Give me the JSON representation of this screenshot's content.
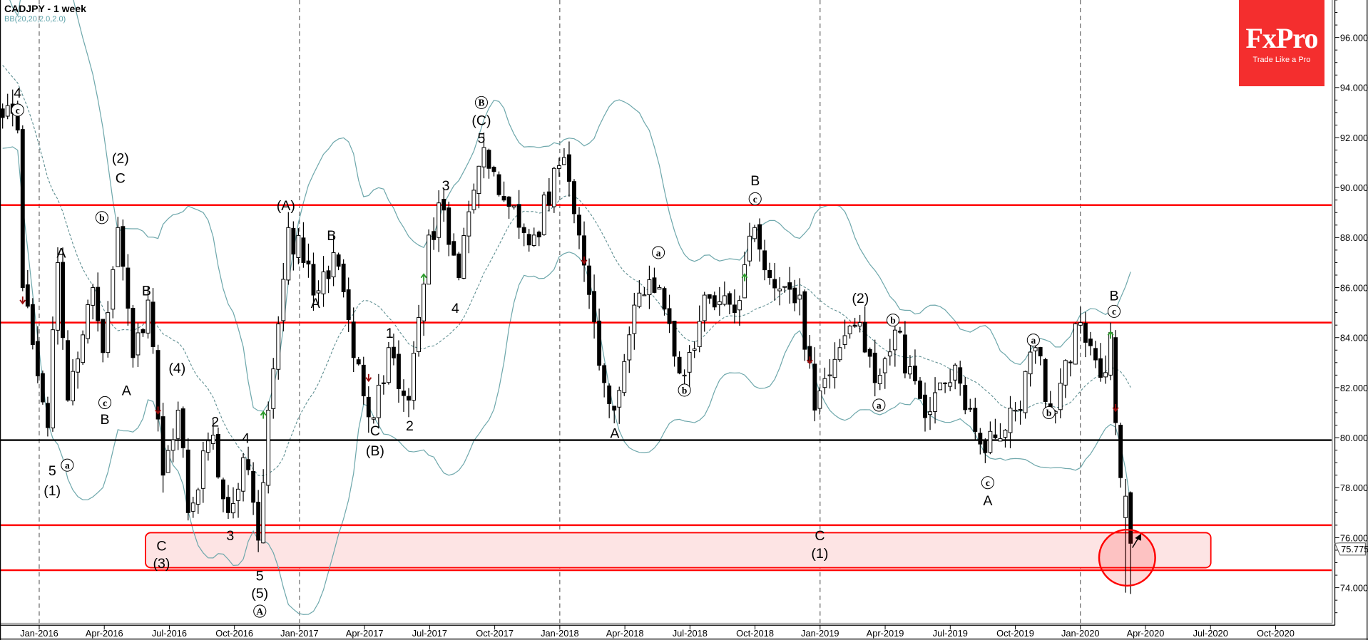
{
  "header": {
    "title": "CADJPY - 1 week",
    "indicator": "BB(20,20,2.0,2.0)"
  },
  "logo": {
    "brand": "FxPro",
    "tagline": "Trade Like a Pro"
  },
  "colors": {
    "bull": "#ffffff",
    "bear": "#000000",
    "band": "#6fa8ac",
    "level": "#ff0000",
    "support": "#000000",
    "zone_fill": "#fde4e4",
    "brand": "#f42e2e"
  },
  "chart_data": {
    "type": "candlestick",
    "symbol": "CADJPY",
    "timeframe": "1 week",
    "ylim": [
      72.57,
      97.5
    ],
    "y_ticks": [
      "74.000",
      "76.000",
      "78.000",
      "80.000",
      "82.000",
      "84.000",
      "86.000",
      "88.000",
      "90.000",
      "92.000",
      "94.000",
      "96.000"
    ],
    "x_ticks": [
      "Jan-2016",
      "Apr-2016",
      "Jul-2016",
      "Oct-2016",
      "Jan-2017",
      "Apr-2017",
      "Jul-2017",
      "Oct-2017",
      "Jan-2018",
      "Apr-2018",
      "Jul-2018",
      "Oct-2018",
      "Jan-2019",
      "Apr-2019",
      "Jul-2019",
      "Oct-2019",
      "Jan-2020",
      "Apr-2020",
      "Jul-2020",
      "Oct-2020"
    ],
    "first_tick_week": 7.3,
    "weeks_per_tick": 12.98,
    "year_separators": [
      "Jan-2016",
      "Jan-2017",
      "Jan-2018",
      "Jan-2019",
      "Jan-2020"
    ],
    "price_path": [
      [
        0,
        92.8
      ],
      [
        3,
        92.3
      ],
      [
        4,
        86.0
      ],
      [
        9,
        80.4
      ],
      [
        11,
        87.0
      ],
      [
        13,
        81.5
      ],
      [
        18,
        86.0
      ],
      [
        20,
        83.4
      ],
      [
        23,
        88.4
      ],
      [
        26,
        83.2
      ],
      [
        29,
        85.5
      ],
      [
        32,
        78.5
      ],
      [
        35,
        81.1
      ],
      [
        37,
        77.0
      ],
      [
        42,
        80.1
      ],
      [
        45,
        77.0
      ],
      [
        48,
        79.2
      ],
      [
        51,
        75.9
      ],
      [
        53,
        81.1
      ],
      [
        57,
        88.4
      ],
      [
        60,
        87.0
      ],
      [
        62,
        85.7
      ],
      [
        66,
        87.4
      ],
      [
        70,
        83.2
      ],
      [
        74,
        80.8
      ],
      [
        77,
        83.6
      ],
      [
        81,
        81.5
      ],
      [
        85,
        88.1
      ],
      [
        88,
        89.1
      ],
      [
        91,
        86.4
      ],
      [
        96,
        91.6
      ],
      [
        100,
        89.5
      ],
      [
        106,
        88.1
      ],
      [
        112,
        91.2
      ],
      [
        115,
        88.1
      ],
      [
        120,
        82.2
      ],
      [
        122,
        81.1
      ],
      [
        126,
        85.3
      ],
      [
        131,
        86.0
      ],
      [
        136,
        82.5
      ],
      [
        140,
        85.7
      ],
      [
        146,
        85.0
      ],
      [
        150,
        88.4
      ],
      [
        153,
        86.4
      ],
      [
        159,
        85.7
      ],
      [
        162,
        81.1
      ],
      [
        167,
        83.6
      ],
      [
        171,
        84.6
      ],
      [
        174,
        82.2
      ],
      [
        178,
        84.3
      ],
      [
        184,
        80.8
      ],
      [
        190,
        82.9
      ],
      [
        196,
        79.4
      ],
      [
        202,
        81.1
      ],
      [
        206,
        83.6
      ],
      [
        209,
        81.1
      ],
      [
        215,
        84.6
      ],
      [
        220,
        82.6
      ]
    ],
    "last_candles": [
      {
        "week": 221,
        "o": 82.5,
        "h": 84.6,
        "l": 82.3,
        "c": 84.2
      },
      {
        "week": 222,
        "o": 84.0,
        "h": 84.3,
        "l": 80.1,
        "c": 80.6
      },
      {
        "week": 223,
        "o": 80.5,
        "h": 80.6,
        "l": 78.0,
        "c": 78.4
      },
      {
        "week": 224,
        "o": 76.8,
        "h": 78.35,
        "l": 73.8,
        "c": 77.66
      },
      {
        "week": 225,
        "o": 77.8,
        "h": 77.85,
        "l": 73.75,
        "c": 75.775
      }
    ],
    "bollinger": {
      "period": 20,
      "deviation": 2.0
    },
    "resistance_levels": [
      89.3,
      84.6,
      76.5,
      74.7
    ],
    "support_level": 79.9,
    "support_zone": {
      "from_week": 28.5,
      "to_week": 241,
      "low": 74.8,
      "high": 76.2
    },
    "highlight_circle": {
      "week": 225,
      "price": 75.2,
      "radius_price": 1.12
    },
    "current_price": "75.775",
    "signals": [
      {
        "week": 4,
        "price": 85.4,
        "dir": "down"
      },
      {
        "week": 31,
        "price": 81.0,
        "dir": "down"
      },
      {
        "week": 52,
        "price": 81.0,
        "dir": "up"
      },
      {
        "week": 73,
        "price": 82.3,
        "dir": "down"
      },
      {
        "week": 84,
        "price": 86.5,
        "dir": "up"
      },
      {
        "week": 116,
        "price": 87.0,
        "dir": "down"
      },
      {
        "week": 148,
        "price": 86.5,
        "dir": "up"
      },
      {
        "week": 161,
        "price": 83.0,
        "dir": "down"
      },
      {
        "week": 221,
        "price": 84.2,
        "dir": "up"
      },
      {
        "week": 222,
        "price": 81.1,
        "dir": "down"
      }
    ],
    "wave_labels": [
      {
        "text": "4",
        "week": 3.0,
        "price": 93.8,
        "circled": false
      },
      {
        "text": "c",
        "week": 3.0,
        "price": 93.1,
        "circled": true
      },
      {
        "text": "(2)",
        "week": 23.5,
        "price": 91.2,
        "circled": false
      },
      {
        "text": "C",
        "week": 23.5,
        "price": 90.4,
        "circled": false
      },
      {
        "text": "b",
        "week": 19.8,
        "price": 88.8,
        "circled": true
      },
      {
        "text": "A",
        "week": 11.7,
        "price": 87.4,
        "circled": false
      },
      {
        "text": "B",
        "week": 28.7,
        "price": 85.9,
        "circled": false
      },
      {
        "text": "5",
        "week": 9.9,
        "price": 78.7,
        "circled": false
      },
      {
        "text": "(1)",
        "week": 9.9,
        "price": 77.9,
        "circled": false
      },
      {
        "text": "a",
        "week": 12.9,
        "price": 78.9,
        "circled": true
      },
      {
        "text": "c",
        "week": 20.4,
        "price": 81.4,
        "circled": true
      },
      {
        "text": "B",
        "week": 20.4,
        "price": 80.75,
        "circled": false
      },
      {
        "text": "A",
        "week": 24.7,
        "price": 81.9,
        "circled": false
      },
      {
        "text": "(4)",
        "week": 34.8,
        "price": 82.8,
        "circled": false
      },
      {
        "text": "2",
        "week": 42.4,
        "price": 80.65,
        "circled": false
      },
      {
        "text": "4",
        "week": 48.5,
        "price": 80.0,
        "circled": false
      },
      {
        "text": "C",
        "week": 31.7,
        "price": 75.7,
        "circled": false
      },
      {
        "text": "(3)",
        "week": 31.7,
        "price": 75.0,
        "circled": false
      },
      {
        "text": "3",
        "week": 45.4,
        "price": 76.1,
        "circled": false
      },
      {
        "text": "5",
        "week": 51.3,
        "price": 74.5,
        "circled": false
      },
      {
        "text": "(5)",
        "week": 51.3,
        "price": 73.8,
        "circled": false
      },
      {
        "text": "A",
        "week": 51.3,
        "price": 73.06,
        "circled": true
      },
      {
        "text": "(A)",
        "week": 56.5,
        "price": 89.3,
        "circled": false
      },
      {
        "text": "B",
        "week": 65.6,
        "price": 88.1,
        "circled": false
      },
      {
        "text": "A",
        "week": 62.4,
        "price": 85.4,
        "circled": false
      },
      {
        "text": "1",
        "week": 77.2,
        "price": 84.2,
        "circled": false
      },
      {
        "text": "2",
        "week": 81.2,
        "price": 80.5,
        "circled": false
      },
      {
        "text": "C",
        "week": 74.3,
        "price": 80.3,
        "circled": false
      },
      {
        "text": "(B)",
        "week": 74.3,
        "price": 79.5,
        "circled": false
      },
      {
        "text": "3",
        "week": 88.4,
        "price": 90.1,
        "circled": false
      },
      {
        "text": "4",
        "week": 90.3,
        "price": 85.2,
        "circled": false
      },
      {
        "text": "B",
        "week": 95.5,
        "price": 93.4,
        "circled": true
      },
      {
        "text": "(C)",
        "week": 95.5,
        "price": 92.7,
        "circled": false
      },
      {
        "text": "5",
        "week": 95.5,
        "price": 92.0,
        "circled": false
      },
      {
        "text": "B",
        "week": 150.1,
        "price": 90.3,
        "circled": false
      },
      {
        "text": "c",
        "week": 150.1,
        "price": 89.55,
        "circled": true
      },
      {
        "text": "a",
        "week": 130.8,
        "price": 87.4,
        "circled": true
      },
      {
        "text": "b",
        "week": 136.0,
        "price": 81.9,
        "circled": true
      },
      {
        "text": "A",
        "week": 122.1,
        "price": 80.2,
        "circled": false
      },
      {
        "text": "(2)",
        "week": 171.1,
        "price": 85.6,
        "circled": false
      },
      {
        "text": "b",
        "week": 177.6,
        "price": 84.7,
        "circled": true
      },
      {
        "text": "a",
        "week": 174.8,
        "price": 81.3,
        "circled": true
      },
      {
        "text": "C",
        "week": 163.0,
        "price": 76.1,
        "circled": false
      },
      {
        "text": "(1)",
        "week": 163.0,
        "price": 75.4,
        "circled": false
      },
      {
        "text": "a",
        "week": 205.6,
        "price": 83.9,
        "circled": true
      },
      {
        "text": "b",
        "week": 208.7,
        "price": 81.0,
        "circled": true
      },
      {
        "text": "c",
        "week": 196.5,
        "price": 78.2,
        "circled": true
      },
      {
        "text": "A",
        "week": 196.5,
        "price": 77.5,
        "circled": false
      },
      {
        "text": "B",
        "week": 221.7,
        "price": 85.7,
        "circled": false
      },
      {
        "text": "c",
        "week": 221.7,
        "price": 85.05,
        "circled": true
      }
    ]
  }
}
